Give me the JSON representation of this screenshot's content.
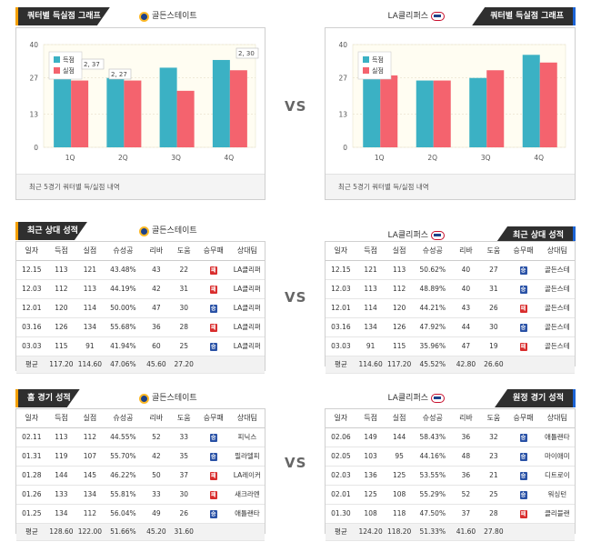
{
  "vs_label": "VS",
  "chart_left": {
    "title": "쿼터별 득실점 그래프",
    "team": "골든스테이트",
    "note": "최근 5경기 쿼터별 득/실점 내역",
    "chart_data": {
      "type": "bar",
      "categories": [
        "1Q",
        "2Q",
        "3Q",
        "4Q"
      ],
      "ylim": [
        0,
        40
      ],
      "yticks": [
        0,
        13,
        27,
        40
      ],
      "series": [
        {
          "name": "득점",
          "color": "#3bb1c4",
          "values": [
            29,
            27,
            31,
            34
          ]
        },
        {
          "name": "실점",
          "color": "#f4636e",
          "values": [
            26,
            26,
            22,
            30
          ]
        }
      ],
      "annotations": [
        "2, 37",
        "2, 27",
        "2, 30"
      ]
    }
  },
  "chart_right": {
    "title": "쿼터별 득실점 그래프",
    "team": "LA클리퍼스",
    "note": "최근 5경기 쿼터별 득/실점 내역",
    "chart_data": {
      "type": "bar",
      "categories": [
        "1Q",
        "2Q",
        "3Q",
        "4Q"
      ],
      "ylim": [
        0,
        40
      ],
      "yticks": [
        0,
        13,
        27,
        40
      ],
      "series": [
        {
          "name": "득점",
          "color": "#3bb1c4",
          "values": [
            27,
            26,
            27,
            36
          ]
        },
        {
          "name": "실점",
          "color": "#f4636e",
          "values": [
            28,
            26,
            30,
            33
          ]
        }
      ]
    }
  },
  "columns": [
    "일자",
    "득점",
    "실점",
    "슈성공",
    "리바",
    "도움",
    "승무패",
    "상대팀"
  ],
  "recent_left": {
    "title": "최근 상대 성적",
    "team": "골든스테이트",
    "rows": [
      {
        "date": "12.15",
        "pts": "113",
        "opp_pts": "121",
        "fg": "43.48%",
        "reb": "43",
        "ast": "22",
        "res": "패",
        "opp": "LA클리퍼"
      },
      {
        "date": "12.03",
        "pts": "112",
        "opp_pts": "113",
        "fg": "44.19%",
        "reb": "42",
        "ast": "31",
        "res": "패",
        "opp": "LA클리퍼"
      },
      {
        "date": "12.01",
        "pts": "120",
        "opp_pts": "114",
        "fg": "50.00%",
        "reb": "47",
        "ast": "30",
        "res": "승",
        "opp": "LA클리퍼"
      },
      {
        "date": "03.16",
        "pts": "126",
        "opp_pts": "134",
        "fg": "55.68%",
        "reb": "36",
        "ast": "28",
        "res": "패",
        "opp": "LA클리퍼"
      },
      {
        "date": "03.03",
        "pts": "115",
        "opp_pts": "91",
        "fg": "41.94%",
        "reb": "60",
        "ast": "25",
        "res": "승",
        "opp": "LA클리퍼"
      }
    ],
    "avg": {
      "label": "평균",
      "pts": "117.20",
      "opp_pts": "114.60",
      "fg": "47.06%",
      "reb": "45.60",
      "ast": "27.20"
    }
  },
  "recent_right": {
    "title": "최근 상대 성적",
    "team": "LA클리퍼스",
    "rows": [
      {
        "date": "12.15",
        "pts": "121",
        "opp_pts": "113",
        "fg": "50.62%",
        "reb": "40",
        "ast": "27",
        "res": "승",
        "opp": "골든스테"
      },
      {
        "date": "12.03",
        "pts": "113",
        "opp_pts": "112",
        "fg": "48.89%",
        "reb": "40",
        "ast": "31",
        "res": "승",
        "opp": "골든스테"
      },
      {
        "date": "12.01",
        "pts": "114",
        "opp_pts": "120",
        "fg": "44.21%",
        "reb": "43",
        "ast": "26",
        "res": "패",
        "opp": "골든스테"
      },
      {
        "date": "03.16",
        "pts": "134",
        "opp_pts": "126",
        "fg": "47.92%",
        "reb": "44",
        "ast": "30",
        "res": "승",
        "opp": "골든스테"
      },
      {
        "date": "03.03",
        "pts": "91",
        "opp_pts": "115",
        "fg": "35.96%",
        "reb": "47",
        "ast": "19",
        "res": "패",
        "opp": "골든스테"
      }
    ],
    "avg": {
      "label": "평균",
      "pts": "114.60",
      "opp_pts": "117.20",
      "fg": "45.52%",
      "reb": "42.80",
      "ast": "26.60"
    }
  },
  "home_left": {
    "title": "홈 경기 성적",
    "team": "골든스테이트",
    "rows": [
      {
        "date": "02.11",
        "pts": "113",
        "opp_pts": "112",
        "fg": "44.55%",
        "reb": "52",
        "ast": "33",
        "res": "승",
        "opp": "피닉스"
      },
      {
        "date": "01.31",
        "pts": "119",
        "opp_pts": "107",
        "fg": "55.70%",
        "reb": "42",
        "ast": "35",
        "res": "승",
        "opp": "필라델피"
      },
      {
        "date": "01.28",
        "pts": "144",
        "opp_pts": "145",
        "fg": "46.22%",
        "reb": "50",
        "ast": "37",
        "res": "패",
        "opp": "LA레이커"
      },
      {
        "date": "01.26",
        "pts": "133",
        "opp_pts": "134",
        "fg": "55.81%",
        "reb": "33",
        "ast": "30",
        "res": "패",
        "opp": "새크라멘"
      },
      {
        "date": "01.25",
        "pts": "134",
        "opp_pts": "112",
        "fg": "56.04%",
        "reb": "49",
        "ast": "26",
        "res": "승",
        "opp": "애틀랜타"
      }
    ],
    "avg": {
      "label": "평균",
      "pts": "128.60",
      "opp_pts": "122.00",
      "fg": "51.66%",
      "reb": "45.20",
      "ast": "31.60"
    }
  },
  "away_right": {
    "title": "원정 경기 성적",
    "team": "LA클리퍼스",
    "rows": [
      {
        "date": "02.06",
        "pts": "149",
        "opp_pts": "144",
        "fg": "58.43%",
        "reb": "36",
        "ast": "32",
        "res": "승",
        "opp": "애틀랜타"
      },
      {
        "date": "02.05",
        "pts": "103",
        "opp_pts": "95",
        "fg": "44.16%",
        "reb": "48",
        "ast": "23",
        "res": "승",
        "opp": "마이애미"
      },
      {
        "date": "02.03",
        "pts": "136",
        "opp_pts": "125",
        "fg": "53.55%",
        "reb": "36",
        "ast": "21",
        "res": "승",
        "opp": "디트로이"
      },
      {
        "date": "02.01",
        "pts": "125",
        "opp_pts": "108",
        "fg": "55.29%",
        "reb": "52",
        "ast": "25",
        "res": "승",
        "opp": "워싱턴"
      },
      {
        "date": "01.30",
        "pts": "108",
        "opp_pts": "118",
        "fg": "47.50%",
        "reb": "37",
        "ast": "28",
        "res": "패",
        "opp": "클리블랜"
      }
    ],
    "avg": {
      "label": "평균",
      "pts": "124.20",
      "opp_pts": "118.20",
      "fg": "51.33%",
      "reb": "41.60",
      "ast": "27.80"
    }
  },
  "colors": {
    "win": "#2a52a6",
    "loss": "#d92d2d",
    "goals": "#3bb1c4",
    "conceded": "#f4636e"
  }
}
